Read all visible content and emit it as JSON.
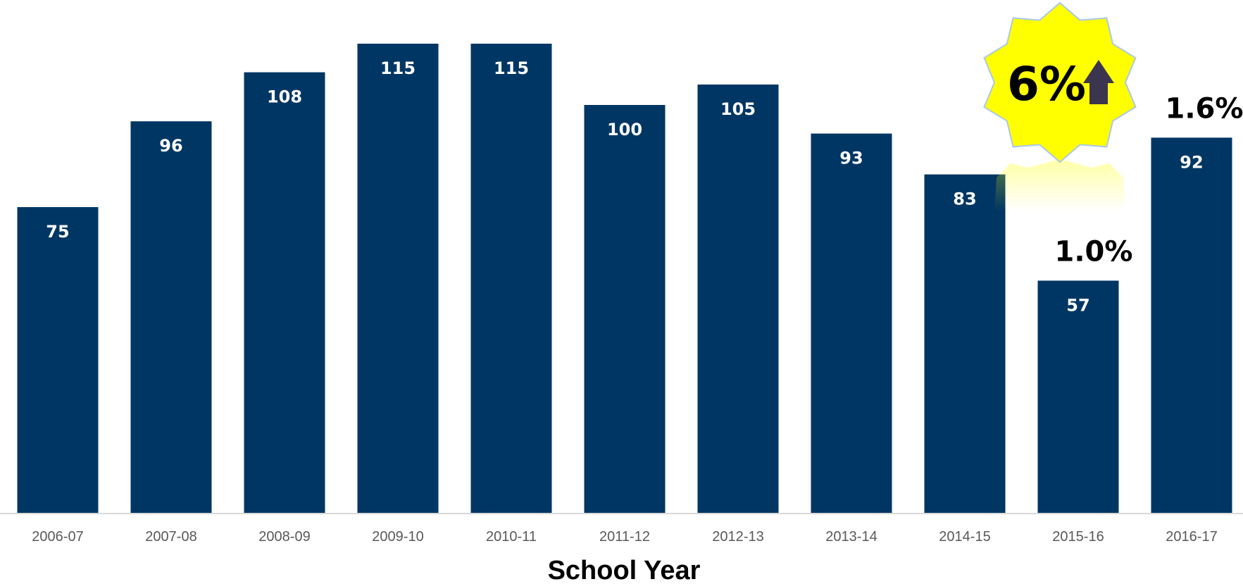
{
  "chart_data": {
    "type": "bar",
    "categories": [
      "2006-07",
      "2007-08",
      "2008-09",
      "2009-10",
      "2010-11",
      "2011-12",
      "2012-13",
      "2013-14",
      "2014-15",
      "2015-16",
      "2016-17"
    ],
    "values": [
      75,
      96,
      108,
      115,
      115,
      100,
      105,
      93,
      83,
      57,
      92
    ],
    "xlabel": "School Year",
    "ylabel": "",
    "ylim": [
      0,
      115
    ],
    "grid": false,
    "data_labels": true,
    "annotations": [
      {
        "category": "2015-16",
        "text": "1.0%"
      },
      {
        "category": "2016-17",
        "text": "1.6%"
      }
    ],
    "badge": {
      "text": "6%",
      "icon": "up-arrow-icon",
      "color": "#ffff00"
    },
    "colors": {
      "bar": "#003663",
      "badge": "#ffff00",
      "axis": "#d9d9d9"
    }
  }
}
